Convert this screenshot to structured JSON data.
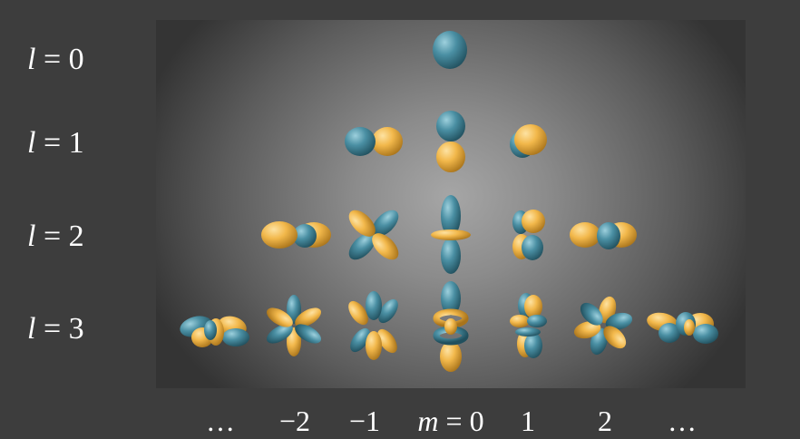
{
  "rows": [
    {
      "var": "l",
      "eq": " = ",
      "value": "0"
    },
    {
      "var": "l",
      "eq": " = ",
      "value": "1"
    },
    {
      "var": "l",
      "eq": " = ",
      "value": "2"
    },
    {
      "var": "l",
      "eq": " = ",
      "value": "3"
    }
  ],
  "columns": {
    "left_dots": "…",
    "m_neg2": "−2",
    "m_neg1": "−1",
    "m0_var": "m",
    "m0_eq": " = 0",
    "m_1": "1",
    "m_2": "2",
    "right_dots": "…"
  },
  "colors": {
    "positive_lobe": "#f2b84b",
    "negative_lobe": "#4a8fa3"
  }
}
